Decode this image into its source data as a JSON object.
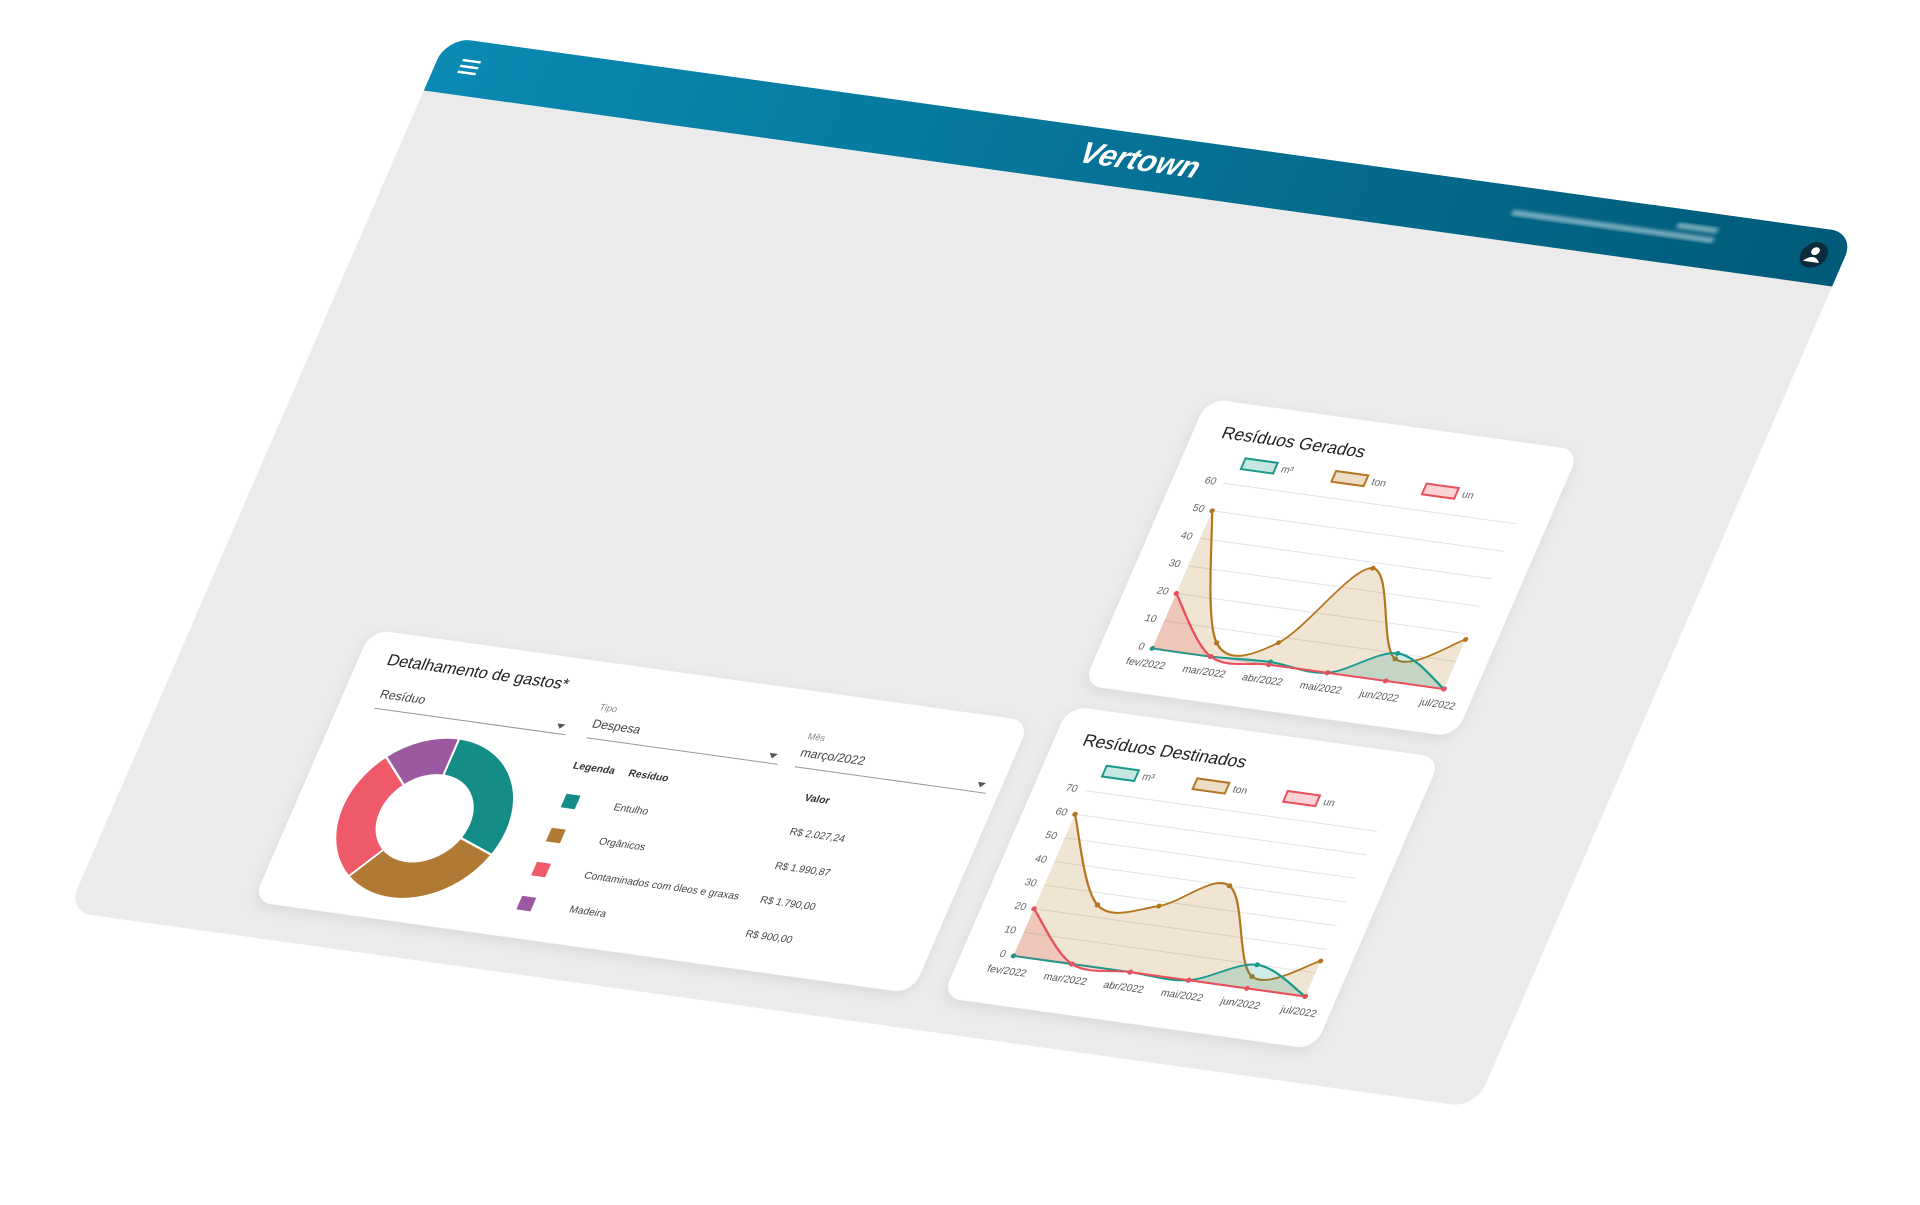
{
  "header": {
    "logo": "Vertown"
  },
  "chart_data": [
    {
      "type": "line",
      "title": "Resíduos Gerados",
      "categories": [
        "fev/2022",
        "mar/2022",
        "abr/2022",
        "mai/2022",
        "jun/2022",
        "jul/2022"
      ],
      "ylim": [
        0,
        60
      ],
      "yticks": [
        0,
        10,
        20,
        30,
        40,
        50,
        60
      ],
      "grid": true,
      "legend": "top",
      "series": [
        {
          "name": "m³",
          "color": "#1a9a8c",
          "values": [
            0,
            0,
            1,
            0,
            10,
            0
          ]
        },
        {
          "name": "ton",
          "color": "#b5761f",
          "values": [
            50,
            5,
            8,
            38,
            8,
            18
          ]
        },
        {
          "name": "un",
          "color": "#e8505b",
          "values": [
            20,
            0,
            0,
            0,
            0,
            0
          ]
        }
      ]
    },
    {
      "type": "line",
      "title": "Resíduos Destinados",
      "categories": [
        "fev/2022",
        "mar/2022",
        "abr/2022",
        "mai/2022",
        "jun/2022",
        "jul/2022"
      ],
      "ylim": [
        0,
        70
      ],
      "yticks": [
        0,
        10,
        20,
        30,
        40,
        50,
        60,
        70
      ],
      "grid": true,
      "legend": "top",
      "series": [
        {
          "name": "m³",
          "color": "#1a9a8c",
          "values": [
            0,
            0,
            0,
            0,
            10,
            0
          ]
        },
        {
          "name": "ton",
          "color": "#b5761f",
          "values": [
            60,
            25,
            28,
            40,
            5,
            15
          ]
        },
        {
          "name": "un",
          "color": "#e8505b",
          "values": [
            20,
            0,
            0,
            0,
            0,
            0
          ]
        }
      ]
    },
    {
      "type": "doughnut",
      "title": "Detalhamento de gastos*",
      "categories": [
        "Entulho",
        "Orgânicos",
        "Contaminados com óleos e graxas",
        "Madeira"
      ],
      "values": [
        2027.24,
        1990.87,
        1790.0,
        900.0
      ],
      "value_labels": [
        "R$ 2.027,24",
        "R$ 1.990,87",
        "R$ 1.790,00",
        "R$ 900,00"
      ],
      "colors": [
        "#138d86",
        "#b07a34",
        "#ef5a6a",
        "#9b59a0"
      ]
    }
  ],
  "filters": [
    {
      "label": null,
      "value": "Resíduo"
    },
    {
      "label": "Tipo",
      "value": "Despesa"
    },
    {
      "label": "Mês",
      "value": "março/2022"
    }
  ],
  "table": {
    "headers": [
      "Legenda",
      "Resíduo",
      "Valor"
    ]
  }
}
